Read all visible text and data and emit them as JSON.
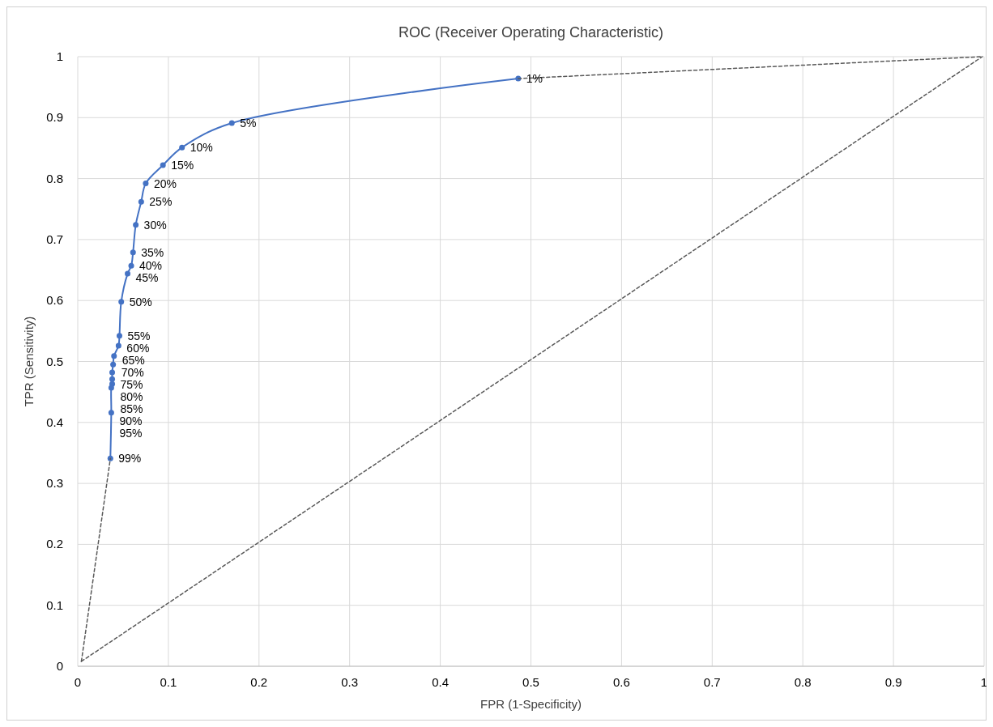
{
  "chart_data": {
    "type": "line",
    "title": "ROC (Receiver Operating Characteristic)",
    "xlabel": "FPR (1-Specificity)",
    "ylabel": "TPR (Sensitivity)",
    "xlim": [
      0,
      1
    ],
    "ylim": [
      0,
      1
    ],
    "xticks": [
      0,
      0.1,
      0.2,
      0.3,
      0.4,
      0.5,
      0.6,
      0.7,
      0.8,
      0.9,
      1
    ],
    "yticks": [
      0,
      0.1,
      0.2,
      0.3,
      0.4,
      0.5,
      0.6,
      0.7,
      0.8,
      0.9,
      1
    ],
    "grid": true,
    "annotations": [
      {
        "text": "1%",
        "x": 0.486,
        "y": 0.964
      },
      {
        "text": "5%",
        "x": 0.17,
        "y": 0.891
      },
      {
        "text": "10%",
        "x": 0.115,
        "y": 0.851
      },
      {
        "text": "15%",
        "x": 0.094,
        "y": 0.822
      },
      {
        "text": "20%",
        "x": 0.075,
        "y": 0.792
      },
      {
        "text": "25%",
        "x": 0.07,
        "y": 0.762
      },
      {
        "text": "30%",
        "x": 0.064,
        "y": 0.724
      },
      {
        "text": "35%",
        "x": 0.061,
        "y": 0.679
      },
      {
        "text": "40%",
        "x": 0.059,
        "y": 0.657
      },
      {
        "text": "45%",
        "x": 0.055,
        "y": 0.644
      },
      {
        "text": "50%",
        "x": 0.048,
        "y": 0.598
      },
      {
        "text": "55%",
        "x": 0.046,
        "y": 0.542
      },
      {
        "text": "60%",
        "x": 0.045,
        "y": 0.526
      },
      {
        "text": "65%",
        "x": 0.04,
        "y": 0.509
      },
      {
        "text": "70%",
        "x": 0.039,
        "y": 0.495
      },
      {
        "text": "75%",
        "x": 0.038,
        "y": 0.482
      },
      {
        "text": "80%",
        "x": 0.038,
        "y": 0.471
      },
      {
        "text": "85%",
        "x": 0.038,
        "y": 0.463
      },
      {
        "text": "90%",
        "x": 0.037,
        "y": 0.457
      },
      {
        "text": "95%",
        "x": 0.037,
        "y": 0.416
      },
      {
        "text": "99%",
        "x": 0.036,
        "y": 0.341
      }
    ],
    "series": [
      {
        "color": "#4472c4",
        "marker": "circle",
        "line_style": "solid",
        "x": [
          0.486,
          0.17,
          0.115,
          0.094,
          0.075,
          0.07,
          0.064,
          0.061,
          0.059,
          0.055,
          0.048,
          0.046,
          0.045,
          0.04,
          0.039,
          0.038,
          0.038,
          0.038,
          0.037,
          0.037,
          0.036
        ],
        "values": [
          0.964,
          0.891,
          0.851,
          0.822,
          0.792,
          0.762,
          0.724,
          0.679,
          0.657,
          0.644,
          0.598,
          0.542,
          0.526,
          0.509,
          0.495,
          0.482,
          0.471,
          0.463,
          0.457,
          0.416,
          0.341
        ]
      },
      {
        "color": "#595959",
        "marker": "none",
        "line_style": "dashed",
        "x": [
          0.004,
          0.036
        ],
        "values": [
          0.008,
          0.341
        ]
      },
      {
        "color": "#595959",
        "marker": "none",
        "line_style": "dashed",
        "x": [
          0.486,
          0.998
        ],
        "values": [
          0.964,
          1.0
        ]
      },
      {
        "color": "#595959",
        "marker": "none",
        "line_style": "dashed",
        "x": [
          0.004,
          0.998
        ],
        "values": [
          0.008,
          1.0
        ]
      }
    ]
  }
}
